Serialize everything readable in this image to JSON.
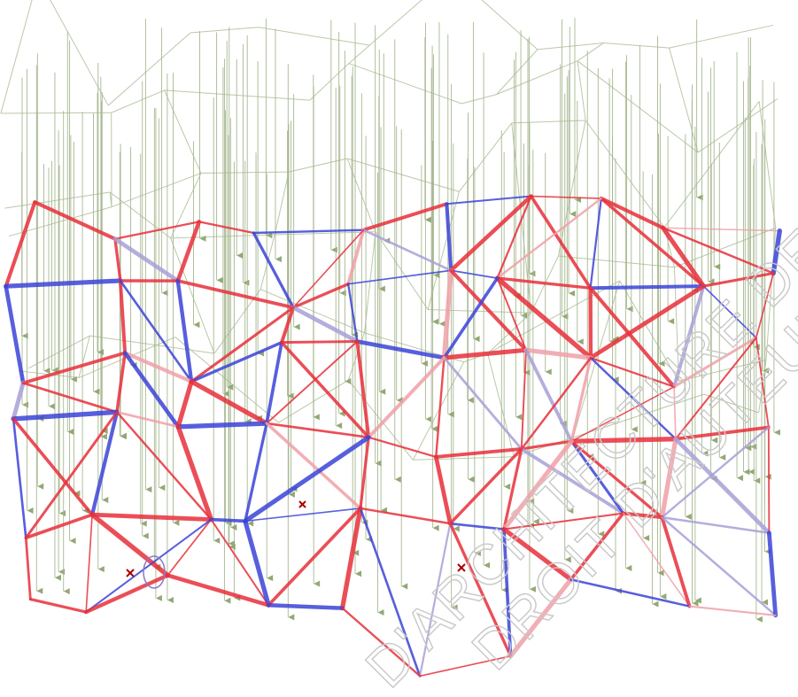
{
  "watermark": {
    "line1": "D'ARCHITECTURE DE TO",
    "line2": "DROIT D'AUTEUR"
  }
}
